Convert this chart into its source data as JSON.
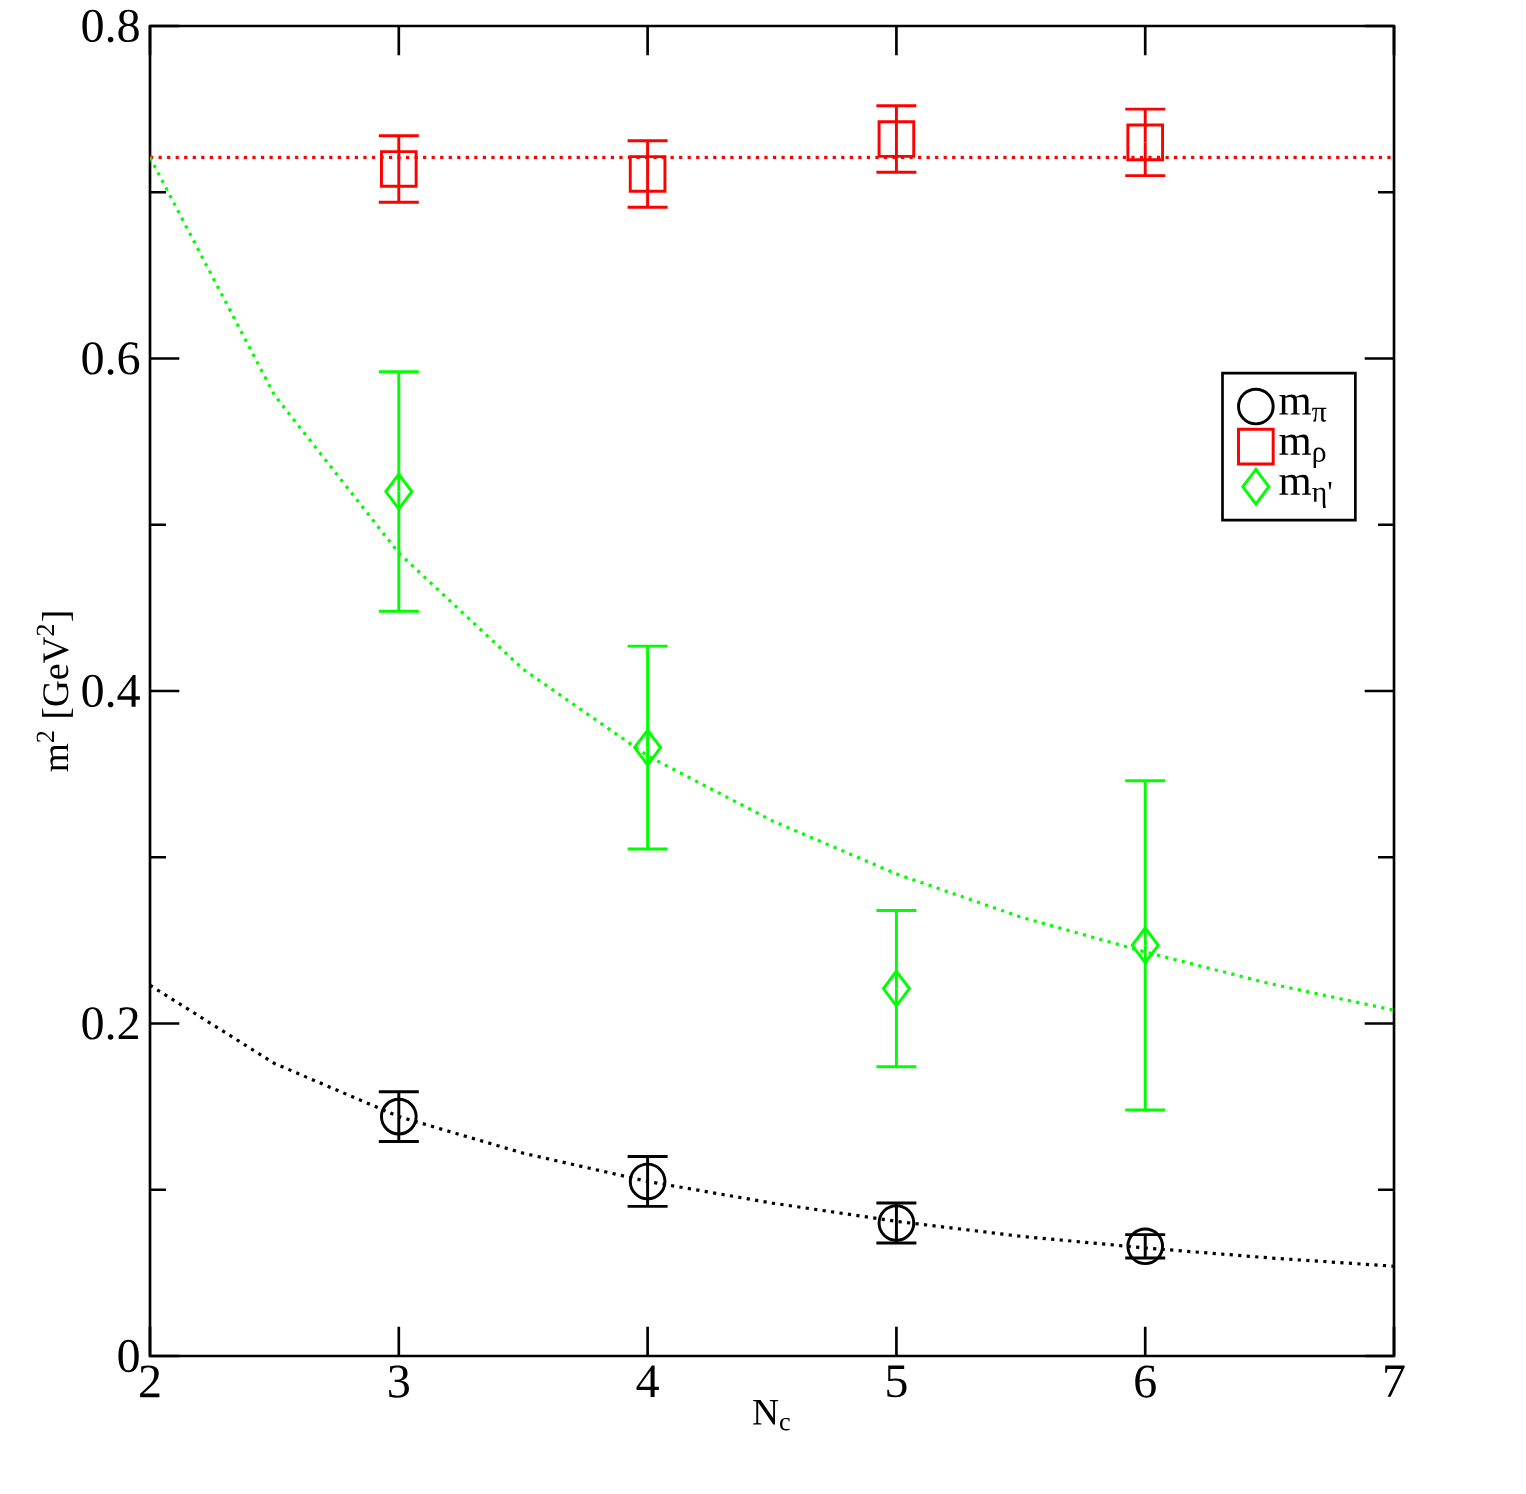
{
  "chart_data": {
    "type": "scatter",
    "xlabel": "N$_{c}$",
    "ylabel": "m$^{2}$ [GeV$^{2}$]",
    "x": [
      3,
      4,
      5,
      6
    ],
    "xlim": [
      2,
      7
    ],
    "xticks": [
      2,
      3,
      4,
      5,
      6,
      7
    ],
    "ylim": [
      0,
      0.8
    ],
    "yticks": [
      0,
      {
        "value": 0.1,
        "label": null
      },
      0.2,
      {
        "value": 0.3,
        "label": null
      },
      0.4,
      {
        "value": 0.5,
        "label": null
      },
      0.6,
      {
        "value": 0.7,
        "label": null
      },
      0.8
    ],
    "legend": "right",
    "series": [
      {
        "name": "m$_{π}$",
        "color": "#000000",
        "marker": "circle",
        "values": [
          0.144,
          0.105,
          0.08,
          0.066
        ],
        "errors": [
          0.015,
          0.015,
          0.012,
          0.007
        ]
      },
      {
        "name": "m$_{ρ}$",
        "color": "#ff0000",
        "marker": "square",
        "values": [
          0.714,
          0.711,
          0.732,
          0.73
        ],
        "errors": [
          0.02,
          0.02,
          0.02,
          0.02
        ]
      },
      {
        "name": "m$_{η'}$",
        "color": "#00ff00",
        "marker": "diamond",
        "values": [
          0.52,
          0.366,
          0.221,
          0.247
        ],
        "errors": [
          0.072,
          0.061,
          0.047,
          0.099
        ]
      },
      {
        "type": "line",
        "color": "#000000",
        "line_style": "dotted",
        "marker": "none",
        "x": [
          2,
          2.5,
          3,
          3.5,
          4,
          4.5,
          5,
          5.5,
          6,
          6.5,
          7
        ],
        "values": [
          0.223,
          0.176,
          0.144,
          0.122,
          0.105,
          0.092,
          0.081,
          0.072,
          0.065,
          0.059,
          0.054
        ]
      },
      {
        "type": "line",
        "color": "#ff0000",
        "line_style": "dotted",
        "marker": "none",
        "x": [
          2,
          7
        ],
        "values": [
          0.721,
          0.721
        ]
      },
      {
        "type": "line",
        "color": "#00ff00",
        "line_style": "dotted",
        "marker": "none",
        "x": [
          2,
          2.5,
          3,
          3.5,
          4,
          4.5,
          5,
          5.5,
          6,
          6.5,
          7
        ],
        "values": [
          0.721,
          0.578,
          0.483,
          0.413,
          0.361,
          0.322,
          0.29,
          0.264,
          0.243,
          0.224,
          0.208
        ]
      }
    ]
  }
}
